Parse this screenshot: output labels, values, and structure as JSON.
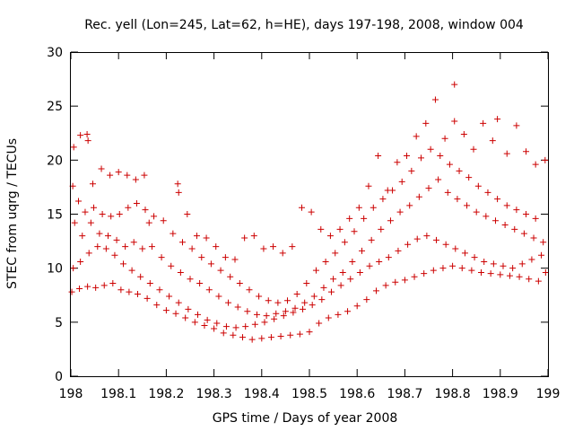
{
  "chart_data": {
    "type": "scatter",
    "title": "Rec. yell (Lon=245, Lat=62, h=HE), days 197-198, 2008, window 004",
    "xlabel": "GPS time / Days of year 2008",
    "ylabel": "STEC from uqrg / TECUs",
    "xlim": [
      198,
      199
    ],
    "ylim": [
      0,
      30
    ],
    "x_ticks": [
      "198",
      "198.1",
      "198.2",
      "198.3",
      "198.4",
      "198.5",
      "198.6",
      "198.7",
      "198.8",
      "198.9",
      "199"
    ],
    "y_ticks": [
      "0",
      "5",
      "10",
      "15",
      "20",
      "25",
      "30"
    ],
    "grid": false,
    "legend": "none",
    "marker": "plus",
    "color": "#cc0000",
    "series": [
      {
        "points": [
          [
            198.002,
            7.8
          ],
          [
            198.018,
            8.1
          ],
          [
            198.035,
            8.3
          ],
          [
            198.052,
            8.2
          ],
          [
            198.07,
            8.4
          ],
          [
            198.088,
            8.6
          ],
          [
            198.105,
            8.0
          ],
          [
            198.122,
            7.8
          ],
          [
            198.14,
            7.6
          ],
          [
            198.16,
            7.2
          ],
          [
            198.18,
            6.6
          ],
          [
            198.2,
            6.1
          ],
          [
            198.22,
            5.8
          ],
          [
            198.24,
            5.4
          ],
          [
            198.26,
            5.0
          ],
          [
            198.28,
            4.7
          ],
          [
            198.3,
            4.4
          ],
          [
            198.32,
            4.0
          ],
          [
            198.34,
            3.8
          ],
          [
            198.36,
            3.6
          ],
          [
            198.38,
            3.4
          ],
          [
            198.4,
            3.5
          ],
          [
            198.42,
            3.6
          ],
          [
            198.44,
            3.7
          ],
          [
            198.46,
            3.8
          ],
          [
            198.48,
            3.9
          ],
          [
            198.5,
            4.1
          ],
          [
            198.52,
            4.9
          ],
          [
            198.54,
            5.4
          ],
          [
            198.56,
            5.7
          ],
          [
            198.58,
            6.0
          ],
          [
            198.6,
            6.5
          ],
          [
            198.62,
            7.1
          ],
          [
            198.64,
            7.9
          ],
          [
            198.66,
            8.4
          ],
          [
            198.68,
            8.7
          ],
          [
            198.7,
            8.9
          ],
          [
            198.72,
            9.2
          ],
          [
            198.74,
            9.5
          ],
          [
            198.76,
            9.8
          ],
          [
            198.78,
            10.0
          ],
          [
            198.8,
            10.2
          ],
          [
            198.82,
            10.0
          ],
          [
            198.84,
            9.8
          ],
          [
            198.86,
            9.6
          ],
          [
            198.88,
            9.5
          ],
          [
            198.9,
            9.4
          ],
          [
            198.92,
            9.3
          ],
          [
            198.94,
            9.2
          ],
          [
            198.96,
            9.0
          ],
          [
            198.98,
            8.8
          ],
          [
            198.995,
            9.6
          ],
          [
            198.005,
            10.0
          ],
          [
            198.02,
            10.6
          ],
          [
            198.038,
            11.4
          ],
          [
            198.056,
            12.0
          ],
          [
            198.074,
            11.8
          ],
          [
            198.092,
            11.2
          ],
          [
            198.11,
            10.4
          ],
          [
            198.128,
            9.8
          ],
          [
            198.146,
            9.2
          ],
          [
            198.166,
            8.6
          ],
          [
            198.186,
            8.0
          ],
          [
            198.206,
            7.4
          ],
          [
            198.226,
            6.8
          ],
          [
            198.246,
            6.2
          ],
          [
            198.266,
            5.7
          ],
          [
            198.286,
            5.2
          ],
          [
            198.306,
            4.9
          ],
          [
            198.326,
            4.6
          ],
          [
            198.346,
            4.5
          ],
          [
            198.366,
            4.6
          ],
          [
            198.386,
            4.8
          ],
          [
            198.406,
            5.0
          ],
          [
            198.426,
            5.3
          ],
          [
            198.446,
            5.6
          ],
          [
            198.466,
            5.9
          ],
          [
            198.486,
            6.2
          ],
          [
            198.506,
            6.6
          ],
          [
            198.526,
            7.1
          ],
          [
            198.546,
            7.8
          ],
          [
            198.566,
            8.4
          ],
          [
            198.586,
            9.0
          ],
          [
            198.606,
            9.6
          ],
          [
            198.626,
            10.2
          ],
          [
            198.646,
            10.6
          ],
          [
            198.666,
            11.0
          ],
          [
            198.686,
            11.6
          ],
          [
            198.706,
            12.2
          ],
          [
            198.726,
            12.7
          ],
          [
            198.746,
            13.0
          ],
          [
            198.766,
            12.6
          ],
          [
            198.786,
            12.2
          ],
          [
            198.806,
            11.8
          ],
          [
            198.826,
            11.4
          ],
          [
            198.846,
            11.0
          ],
          [
            198.866,
            10.6
          ],
          [
            198.886,
            10.4
          ],
          [
            198.906,
            10.2
          ],
          [
            198.926,
            10.0
          ],
          [
            198.946,
            10.4
          ],
          [
            198.966,
            10.8
          ],
          [
            198.986,
            11.2
          ],
          [
            198.008,
            14.2
          ],
          [
            198.024,
            13.0
          ],
          [
            198.042,
            14.2
          ],
          [
            198.06,
            13.2
          ],
          [
            198.078,
            13.0
          ],
          [
            198.096,
            12.6
          ],
          [
            198.114,
            12.0
          ],
          [
            198.132,
            12.4
          ],
          [
            198.15,
            11.8
          ],
          [
            198.17,
            12.0
          ],
          [
            198.19,
            11.0
          ],
          [
            198.21,
            10.2
          ],
          [
            198.23,
            9.6
          ],
          [
            198.25,
            9.0
          ],
          [
            198.27,
            8.6
          ],
          [
            198.29,
            8.0
          ],
          [
            198.31,
            7.4
          ],
          [
            198.33,
            6.8
          ],
          [
            198.35,
            6.4
          ],
          [
            198.37,
            6.0
          ],
          [
            198.39,
            5.7
          ],
          [
            198.41,
            5.6
          ],
          [
            198.43,
            5.8
          ],
          [
            198.45,
            6.0
          ],
          [
            198.47,
            6.3
          ],
          [
            198.49,
            6.8
          ],
          [
            198.51,
            7.4
          ],
          [
            198.53,
            8.2
          ],
          [
            198.55,
            9.0
          ],
          [
            198.57,
            9.6
          ],
          [
            198.59,
            10.6
          ],
          [
            198.61,
            11.6
          ],
          [
            198.63,
            12.6
          ],
          [
            198.65,
            13.6
          ],
          [
            198.67,
            14.4
          ],
          [
            198.69,
            15.2
          ],
          [
            198.71,
            15.8
          ],
          [
            198.73,
            16.6
          ],
          [
            198.75,
            17.4
          ],
          [
            198.77,
            18.2
          ],
          [
            198.79,
            17.0
          ],
          [
            198.81,
            16.4
          ],
          [
            198.83,
            15.8
          ],
          [
            198.85,
            15.2
          ],
          [
            198.87,
            14.8
          ],
          [
            198.89,
            14.4
          ],
          [
            198.91,
            14.0
          ],
          [
            198.93,
            13.6
          ],
          [
            198.95,
            13.2
          ],
          [
            198.97,
            12.8
          ],
          [
            198.99,
            12.4
          ],
          [
            198.004,
            17.6
          ],
          [
            198.016,
            16.2
          ],
          [
            198.03,
            15.2
          ],
          [
            198.048,
            15.6
          ],
          [
            198.066,
            15.0
          ],
          [
            198.084,
            14.8
          ],
          [
            198.102,
            15.0
          ],
          [
            198.12,
            15.6
          ],
          [
            198.138,
            16.0
          ],
          [
            198.156,
            15.4
          ],
          [
            198.174,
            14.8
          ],
          [
            198.194,
            14.4
          ],
          [
            198.214,
            13.2
          ],
          [
            198.234,
            12.4
          ],
          [
            198.254,
            11.8
          ],
          [
            198.274,
            11.0
          ],
          [
            198.294,
            10.4
          ],
          [
            198.314,
            9.8
          ],
          [
            198.334,
            9.2
          ],
          [
            198.354,
            8.6
          ],
          [
            198.374,
            8.0
          ],
          [
            198.394,
            7.4
          ],
          [
            198.414,
            7.0
          ],
          [
            198.434,
            6.8
          ],
          [
            198.454,
            7.0
          ],
          [
            198.474,
            7.6
          ],
          [
            198.494,
            8.6
          ],
          [
            198.514,
            9.8
          ],
          [
            198.534,
            10.6
          ],
          [
            198.554,
            11.4
          ],
          [
            198.574,
            12.4
          ],
          [
            198.594,
            13.4
          ],
          [
            198.614,
            14.6
          ],
          [
            198.634,
            15.6
          ],
          [
            198.654,
            16.4
          ],
          [
            198.674,
            17.2
          ],
          [
            198.694,
            18.0
          ],
          [
            198.714,
            19.0
          ],
          [
            198.734,
            20.2
          ],
          [
            198.754,
            21.0
          ],
          [
            198.774,
            20.4
          ],
          [
            198.794,
            19.6
          ],
          [
            198.814,
            19.0
          ],
          [
            198.834,
            18.4
          ],
          [
            198.854,
            17.6
          ],
          [
            198.874,
            17.0
          ],
          [
            198.894,
            16.4
          ],
          [
            198.914,
            15.8
          ],
          [
            198.934,
            15.4
          ],
          [
            198.954,
            15.0
          ],
          [
            198.974,
            14.6
          ],
          [
            198.006,
            21.2
          ],
          [
            198.02,
            22.3
          ],
          [
            198.034,
            22.4
          ],
          [
            198.036,
            21.8
          ],
          [
            198.046,
            17.8
          ],
          [
            198.064,
            19.2
          ],
          [
            198.082,
            18.6
          ],
          [
            198.1,
            18.9
          ],
          [
            198.118,
            18.6
          ],
          [
            198.136,
            18.2
          ],
          [
            198.154,
            18.6
          ],
          [
            198.224,
            17.8
          ],
          [
            198.226,
            17.0
          ],
          [
            198.164,
            14.2
          ],
          [
            198.244,
            15.0
          ],
          [
            198.264,
            13.0
          ],
          [
            198.284,
            12.8
          ],
          [
            198.304,
            12.0
          ],
          [
            198.324,
            11.0
          ],
          [
            198.344,
            10.8
          ],
          [
            198.364,
            12.8
          ],
          [
            198.384,
            13.0
          ],
          [
            198.404,
            11.8
          ],
          [
            198.424,
            12.0
          ],
          [
            198.444,
            11.4
          ],
          [
            198.464,
            12.0
          ],
          [
            198.484,
            15.6
          ],
          [
            198.504,
            15.2
          ],
          [
            198.524,
            13.6
          ],
          [
            198.544,
            13.0
          ],
          [
            198.564,
            13.6
          ],
          [
            198.584,
            14.6
          ],
          [
            198.604,
            15.6
          ],
          [
            198.624,
            17.6
          ],
          [
            198.644,
            20.4
          ],
          [
            198.664,
            17.2
          ],
          [
            198.684,
            19.8
          ],
          [
            198.704,
            20.4
          ],
          [
            198.724,
            22.2
          ],
          [
            198.744,
            23.4
          ],
          [
            198.764,
            25.6
          ],
          [
            198.784,
            22.0
          ],
          [
            198.804,
            27.0
          ],
          [
            198.804,
            23.6
          ],
          [
            198.824,
            22.4
          ],
          [
            198.844,
            21.0
          ],
          [
            198.864,
            23.4
          ],
          [
            198.884,
            21.8
          ],
          [
            198.894,
            23.8
          ],
          [
            198.914,
            20.6
          ],
          [
            198.934,
            23.2
          ],
          [
            198.954,
            20.8
          ],
          [
            198.974,
            19.6
          ],
          [
            198.994,
            20.0
          ]
        ]
      }
    ]
  }
}
